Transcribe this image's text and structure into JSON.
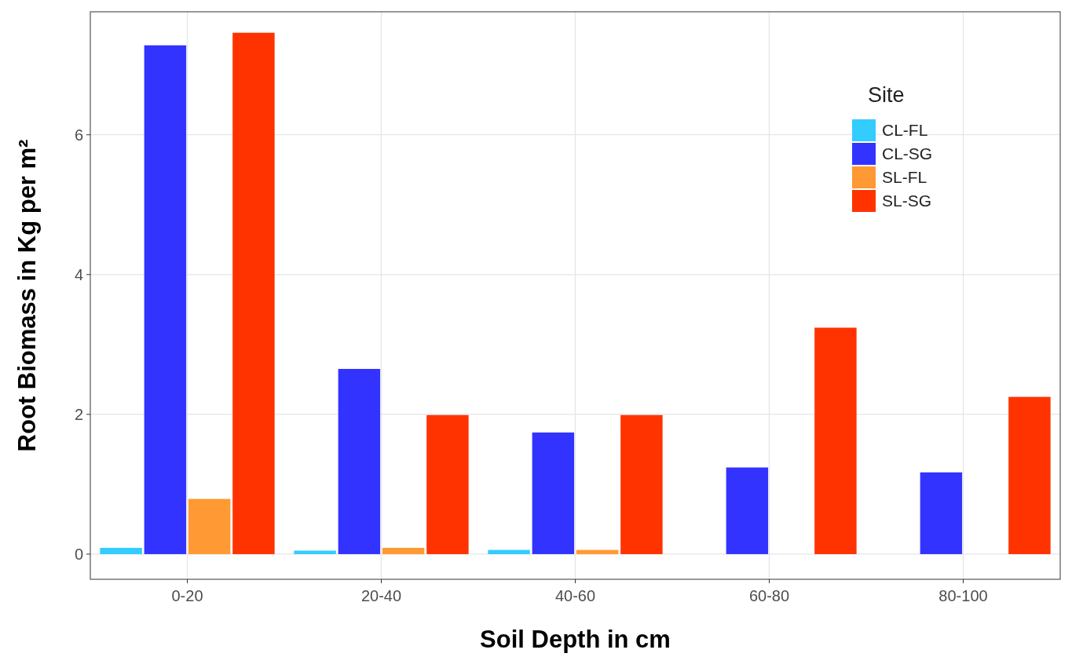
{
  "chart_data": {
    "type": "bar",
    "xlabel": "Soil Depth in cm",
    "ylabel": "Root Biomass in Kg per m²",
    "legend_title": "Site",
    "categories": [
      "0-20",
      "20-40",
      "40-60",
      "60-80",
      "80-100"
    ],
    "series": [
      {
        "name": "CL-FL",
        "color": "#33ccff",
        "values": [
          0.09,
          0.05,
          0.06,
          null,
          null
        ]
      },
      {
        "name": "CL-SG",
        "color": "#3333ff",
        "values": [
          7.28,
          2.65,
          1.74,
          1.24,
          1.17
        ]
      },
      {
        "name": "SL-FL",
        "color": "#ff9933",
        "values": [
          0.79,
          0.09,
          0.06,
          null,
          null
        ]
      },
      {
        "name": "SL-SG",
        "color": "#ff3300",
        "values": [
          7.46,
          1.99,
          1.99,
          3.24,
          2.25
        ]
      }
    ],
    "ylim": [
      -0.36,
      7.76
    ],
    "yticks": [
      0,
      2,
      4,
      6
    ],
    "grid": true,
    "legend": "top right"
  }
}
